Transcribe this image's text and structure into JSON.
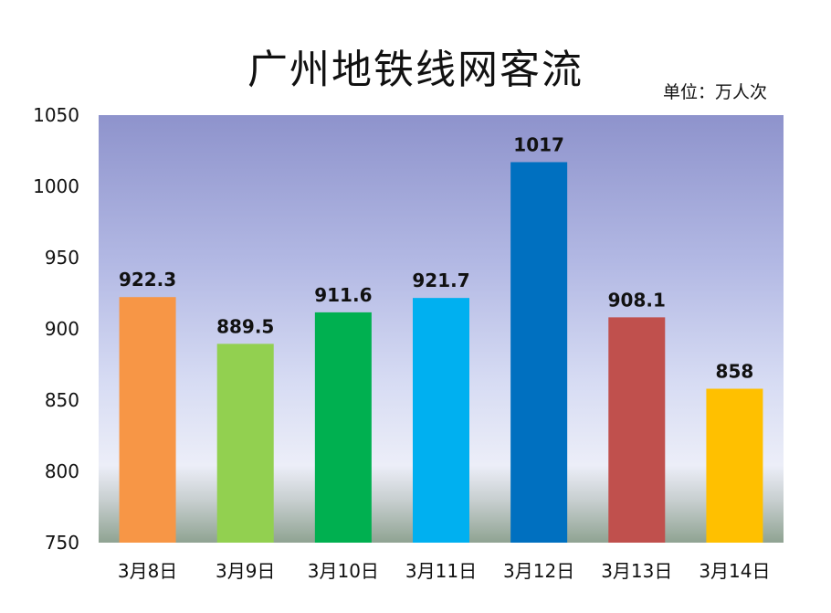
{
  "chart_data": {
    "type": "bar",
    "title": "广州地铁线网客流",
    "unit": "单位：万人次",
    "categories": [
      "3月8日",
      "3月9日",
      "3月10日",
      "3月11日",
      "3月12日",
      "3月13日",
      "3月14日"
    ],
    "values": [
      922.3,
      889.5,
      911.6,
      921.7,
      1017,
      908.1,
      858
    ],
    "data_labels": [
      "922.3",
      "889.5",
      "911.6",
      "921.7",
      "1017",
      "908.1",
      "858"
    ],
    "colors": [
      "#F79646",
      "#92D050",
      "#00B050",
      "#00B0F0",
      "#0070C0",
      "#C0504D",
      "#FFC000"
    ],
    "ylim": [
      750,
      1050
    ],
    "yticks": [
      750,
      800,
      850,
      900,
      950,
      1000,
      1050
    ],
    "grid": false,
    "legend": "none"
  }
}
